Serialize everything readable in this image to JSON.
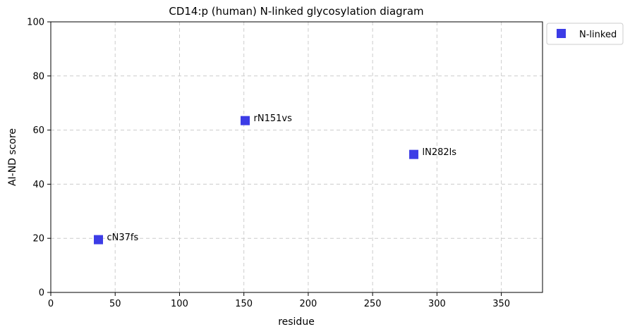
{
  "chart_data": {
    "type": "scatter",
    "title": "CD14:p (human) N-linked glycosylation diagram",
    "xlabel": "residue",
    "ylabel": "AI-ND score",
    "xlim": [
      0,
      382
    ],
    "ylim": [
      0,
      100
    ],
    "xticks": [
      "0",
      "50",
      "100",
      "150",
      "200",
      "250",
      "300",
      "350"
    ],
    "yticks": [
      "0",
      "20",
      "40",
      "60",
      "80",
      "100"
    ],
    "grid": true,
    "legend_position": "outside-top-right",
    "series": [
      {
        "name": "N-linked",
        "color": "#3c3ce6",
        "marker": "square",
        "points": [
          {
            "x": 37,
            "y": 19.5,
            "label": "cN37fs"
          },
          {
            "x": 151,
            "y": 63.5,
            "label": "rN151vs"
          },
          {
            "x": 282,
            "y": 51,
            "label": "lN282ls"
          }
        ]
      }
    ]
  }
}
